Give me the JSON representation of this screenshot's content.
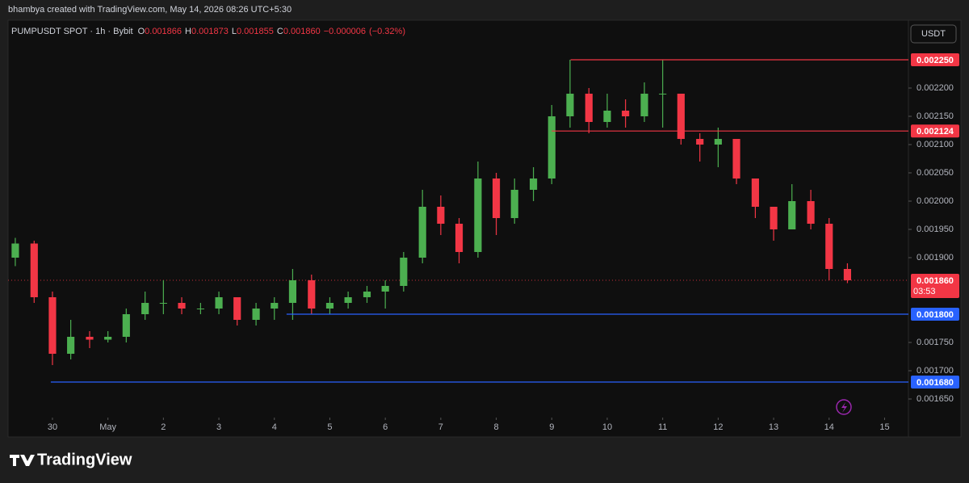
{
  "header": {
    "credit": "bhambya created with TradingView.com, May 14, 2026 08:26 UTC+5:30",
    "currency_button": "USDT",
    "brand": "TradingView"
  },
  "chart_data": {
    "type": "candlestick",
    "symbol": "PUMPUSDT SPOT · 1h · Bybit",
    "legend": {
      "open_label": "O",
      "open": 0.001866,
      "high_label": "H",
      "high": 0.001873,
      "low_label": "L",
      "low": 0.001855,
      "close_label": "C",
      "close": {
        "value": 0.00186,
        "label": "0.001860"
      },
      "change": {
        "value": -6e-06,
        "label": "−0.000006"
      },
      "change_pct": {
        "value": -0.32,
        "label": "(−0.32%)"
      }
    },
    "xlim": [
      -0.8,
      15.43
    ],
    "xticks": [
      {
        "value": 0,
        "label": "30"
      },
      {
        "value": 1,
        "label": "May"
      },
      {
        "value": 2,
        "label": "2"
      },
      {
        "value": 3,
        "label": "3"
      },
      {
        "value": 4,
        "label": "4"
      },
      {
        "value": 5,
        "label": "5"
      },
      {
        "value": 6,
        "label": "6"
      },
      {
        "value": 7,
        "label": "7"
      },
      {
        "value": 8,
        "label": "8"
      },
      {
        "value": 9,
        "label": "9"
      },
      {
        "value": 10,
        "label": "10"
      },
      {
        "value": 11,
        "label": "11"
      },
      {
        "value": 12,
        "label": "12"
      },
      {
        "value": 13,
        "label": "13"
      },
      {
        "value": 14,
        "label": "14"
      },
      {
        "value": 15,
        "label": "15"
      }
    ],
    "ylim": [
      0.00162,
      0.00232
    ],
    "yticks": [
      {
        "value": 0.00165,
        "label": "0.001650"
      },
      {
        "value": 0.0017,
        "label": "0.001700"
      },
      {
        "value": 0.00175,
        "label": "0.001750"
      },
      {
        "value": 0.0019,
        "label": "0.001900"
      },
      {
        "value": 0.00195,
        "label": "0.001950"
      },
      {
        "value": 0.002,
        "label": "0.002000"
      },
      {
        "value": 0.00205,
        "label": "0.002050"
      },
      {
        "value": 0.0021,
        "label": "0.002100"
      },
      {
        "value": 0.00215,
        "label": "0.002150"
      },
      {
        "value": 0.0022,
        "label": "0.002200"
      }
    ],
    "series": [
      {
        "up_color": "#4caf50",
        "down_color": "#f23645",
        "x": [
          -0.67,
          -0.33,
          0,
          0.33,
          0.67,
          1,
          1.33,
          1.67,
          2,
          2.33,
          2.67,
          3,
          3.33,
          3.67,
          4,
          4.33,
          4.67,
          5,
          5.33,
          5.67,
          6,
          6.33,
          6.67,
          7,
          7.33,
          7.67,
          8,
          8.33,
          8.67,
          9,
          9.33,
          9.67,
          10,
          10.33,
          10.67,
          11,
          11.33,
          11.67,
          12,
          12.33,
          12.67,
          13,
          13.33,
          13.67,
          14,
          14.33
        ],
        "ohlc": [
          [
            0.0019,
            0.001935,
            0.001885,
            0.001925
          ],
          [
            0.001925,
            0.00193,
            0.00182,
            0.00183
          ],
          [
            0.00183,
            0.00184,
            0.00171,
            0.00173
          ],
          [
            0.00173,
            0.00179,
            0.00172,
            0.00176
          ],
          [
            0.00176,
            0.00177,
            0.00174,
            0.001755
          ],
          [
            0.001755,
            0.00177,
            0.00175,
            0.00176
          ],
          [
            0.00176,
            0.00181,
            0.00175,
            0.0018
          ],
          [
            0.0018,
            0.00184,
            0.00179,
            0.00182
          ],
          [
            0.00182,
            0.00186,
            0.0018,
            0.00182
          ],
          [
            0.00182,
            0.00183,
            0.0018,
            0.00181
          ],
          [
            0.00181,
            0.00182,
            0.0018,
            0.00181
          ],
          [
            0.00181,
            0.00184,
            0.0018,
            0.00183
          ],
          [
            0.00183,
            0.00183,
            0.00178,
            0.00179
          ],
          [
            0.00179,
            0.00182,
            0.00178,
            0.00181
          ],
          [
            0.00181,
            0.00183,
            0.00179,
            0.00182
          ],
          [
            0.00182,
            0.00188,
            0.00179,
            0.00186
          ],
          [
            0.00186,
            0.00187,
            0.0018,
            0.00181
          ],
          [
            0.00181,
            0.00183,
            0.0018,
            0.00182
          ],
          [
            0.00182,
            0.00184,
            0.00181,
            0.00183
          ],
          [
            0.00183,
            0.00185,
            0.00182,
            0.00184
          ],
          [
            0.00184,
            0.00186,
            0.00181,
            0.00185
          ],
          [
            0.00185,
            0.00191,
            0.00184,
            0.0019
          ],
          [
            0.0019,
            0.00202,
            0.00189,
            0.00199
          ],
          [
            0.00199,
            0.00201,
            0.00194,
            0.00196
          ],
          [
            0.00196,
            0.00197,
            0.00189,
            0.00191
          ],
          [
            0.00191,
            0.00207,
            0.0019,
            0.00204
          ],
          [
            0.00204,
            0.00205,
            0.00194,
            0.00197
          ],
          [
            0.00197,
            0.00204,
            0.00196,
            0.00202
          ],
          [
            0.00202,
            0.00206,
            0.002,
            0.00204
          ],
          [
            0.00204,
            0.00217,
            0.00203,
            0.00215
          ],
          [
            0.00215,
            0.00225,
            0.00213,
            0.00219
          ],
          [
            0.00219,
            0.0022,
            0.00212,
            0.00214
          ],
          [
            0.00214,
            0.00219,
            0.00213,
            0.00216
          ],
          [
            0.00216,
            0.00218,
            0.00213,
            0.00215
          ],
          [
            0.00215,
            0.00221,
            0.00214,
            0.00219
          ],
          [
            0.00219,
            0.00225,
            0.00213,
            0.00219
          ],
          [
            0.00219,
            0.00219,
            0.0021,
            0.00211
          ],
          [
            0.00211,
            0.00212,
            0.00207,
            0.0021
          ],
          [
            0.0021,
            0.00213,
            0.00206,
            0.00211
          ],
          [
            0.00211,
            0.00211,
            0.00203,
            0.00204
          ],
          [
            0.00204,
            0.00204,
            0.00197,
            0.00199
          ],
          [
            0.00199,
            0.00199,
            0.00193,
            0.00195
          ],
          [
            0.00195,
            0.00203,
            0.00195,
            0.002
          ],
          [
            0.002,
            0.00202,
            0.00195,
            0.00196
          ],
          [
            0.00196,
            0.00197,
            0.00186,
            0.00188
          ],
          [
            0.00188,
            0.00189,
            0.001855,
            0.00186
          ]
        ]
      }
    ],
    "levels": [
      {
        "value": 0.00225,
        "label": "0.002250",
        "color": "#f23645",
        "from": 9.34
      },
      {
        "value": 0.002124,
        "label": "0.002124",
        "color": "#f23645",
        "from": 9.0
      },
      {
        "value": 0.0018,
        "label": "0.001800",
        "color": "#2962ff",
        "from": 4.22
      },
      {
        "value": 0.00168,
        "label": "0.001680",
        "color": "#2962ff",
        "from": -0.03
      }
    ],
    "last_price": {
      "value": 0.00186,
      "label": "0.001860",
      "countdown": "03:53",
      "color": "#f23645"
    }
  }
}
